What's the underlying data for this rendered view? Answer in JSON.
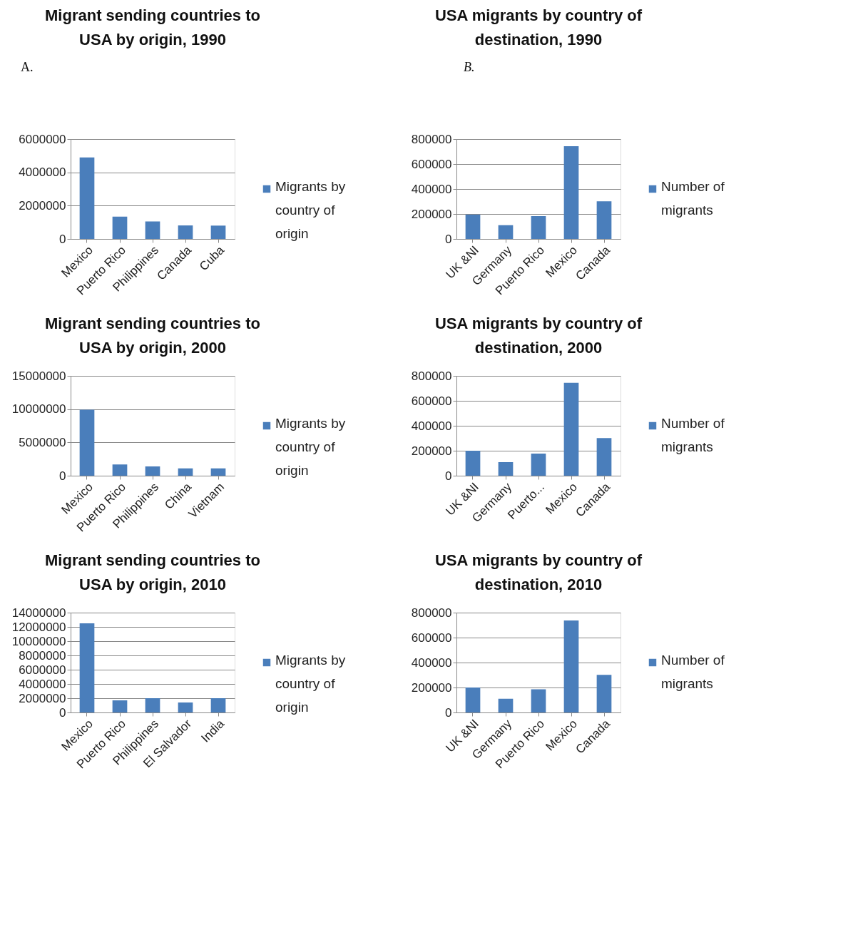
{
  "chart_data": [
    {
      "type": "bar",
      "title": "Migrant sending countries  to USA by origin, 1990",
      "annotations": [
        "A."
      ],
      "categories": [
        "Mexico",
        "Puerto Rico",
        "Philippines",
        "Canada",
        "Cuba"
      ],
      "series": [
        {
          "name": "Migrants by country of origin",
          "color": "#4a7ebb",
          "values": [
            4900000,
            1340000,
            1050000,
            810000,
            800000
          ]
        }
      ],
      "ylim": [
        0,
        6000000
      ],
      "yticks": [
        0,
        2000000,
        4000000,
        6000000
      ],
      "grid": "y",
      "legend": "right"
    },
    {
      "type": "bar",
      "title": "USA migrants by country of destination, 1990",
      "annotations": [
        "B."
      ],
      "categories": [
        "UK &NI",
        "Germany",
        "Puerto Rico",
        "Mexico",
        "Canada"
      ],
      "series": [
        {
          "name": "Number of migrants",
          "color": "#4a7ebb",
          "values": [
            195000,
            110000,
            183000,
            743000,
            302000
          ]
        }
      ],
      "ylim": [
        0,
        800000
      ],
      "yticks": [
        0,
        200000,
        400000,
        600000,
        800000
      ],
      "grid": "y",
      "legend": "right"
    },
    {
      "type": "bar",
      "title": "Migrant sending countries  to USA by origin, 2000",
      "categories": [
        "Mexico",
        "Puerto Rico",
        "Philippines",
        "China",
        "Vietnam"
      ],
      "series": [
        {
          "name": "Migrants by country of origin",
          "color": "#4a7ebb",
          "values": [
            9900000,
            1700000,
            1400000,
            1100000,
            1100000
          ]
        }
      ],
      "ylim": [
        0,
        15000000
      ],
      "yticks": [
        0,
        5000000,
        10000000,
        15000000
      ],
      "grid": "y",
      "legend": "right"
    },
    {
      "type": "bar",
      "title": "USA migrants by country of destination, 2000",
      "categories": [
        "UK &NI",
        "Germany",
        "Puerto...",
        "Mexico",
        "Canada"
      ],
      "series": [
        {
          "name": "Number of migrants",
          "color": "#4a7ebb",
          "values": [
            200000,
            108000,
            177000,
            745000,
            301000
          ]
        }
      ],
      "ylim": [
        0,
        800000
      ],
      "yticks": [
        0,
        200000,
        400000,
        600000,
        800000
      ],
      "grid": "y",
      "legend": "right"
    },
    {
      "type": "bar",
      "title": "Migrant sending countries  to USA by origin, 2010",
      "categories": [
        "Mexico",
        "Puerto Rico",
        "Philippines",
        "El Salvador",
        "India"
      ],
      "series": [
        {
          "name": "Migrants by country of origin",
          "color": "#4a7ebb",
          "values": [
            12500000,
            1700000,
            2000000,
            1400000,
            2000000
          ]
        }
      ],
      "ylim": [
        0,
        14000000
      ],
      "yticks": [
        0,
        2000000,
        4000000,
        6000000,
        8000000,
        10000000,
        12000000,
        14000000
      ],
      "grid": "y",
      "legend": "right"
    },
    {
      "type": "bar",
      "title": "USA migrants by country of destination, 2010",
      "categories": [
        "UK &NI",
        "Germany",
        "Puerto Rico",
        "Mexico",
        "Canada"
      ],
      "series": [
        {
          "name": "Number of migrants",
          "color": "#4a7ebb",
          "values": [
            200000,
            110000,
            186000,
            737000,
            302000
          ]
        }
      ],
      "ylim": [
        0,
        800000
      ],
      "yticks": [
        0,
        200000,
        400000,
        600000,
        800000
      ],
      "grid": "y",
      "legend": "right"
    }
  ]
}
